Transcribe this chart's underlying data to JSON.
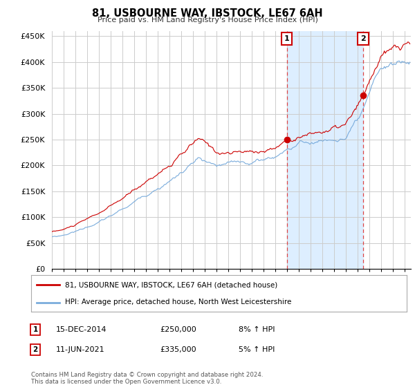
{
  "title": "81, USBOURNE WAY, IBSTOCK, LE67 6AH",
  "subtitle": "Price paid vs. HM Land Registry's House Price Index (HPI)",
  "ylabel_ticks": [
    "£0",
    "£50K",
    "£100K",
    "£150K",
    "£200K",
    "£250K",
    "£300K",
    "£350K",
    "£400K",
    "£450K"
  ],
  "ylim": [
    0,
    460000
  ],
  "xlim_start": 1995.0,
  "xlim_end": 2025.5,
  "transaction1": {
    "date_num": 2014.96,
    "price": 250000,
    "label": "1",
    "date_str": "15-DEC-2014",
    "pct": "8%",
    "direction": "↑"
  },
  "transaction2": {
    "date_num": 2021.44,
    "price": 335000,
    "label": "2",
    "date_str": "11-JUN-2021",
    "pct": "5%",
    "direction": "↑"
  },
  "legend_line1": "81, USBOURNE WAY, IBSTOCK, LE67 6AH (detached house)",
  "legend_line2": "HPI: Average price, detached house, North West Leicestershire",
  "footer": "Contains HM Land Registry data © Crown copyright and database right 2024.\nThis data is licensed under the Open Government Licence v3.0.",
  "red_color": "#cc0000",
  "blue_color": "#7aacdc",
  "shade_color": "#ddeeff",
  "annotation_box_color": "#cc0000",
  "vline_color": "#dd4444",
  "grid_color": "#cccccc",
  "background_color": "#ffffff"
}
